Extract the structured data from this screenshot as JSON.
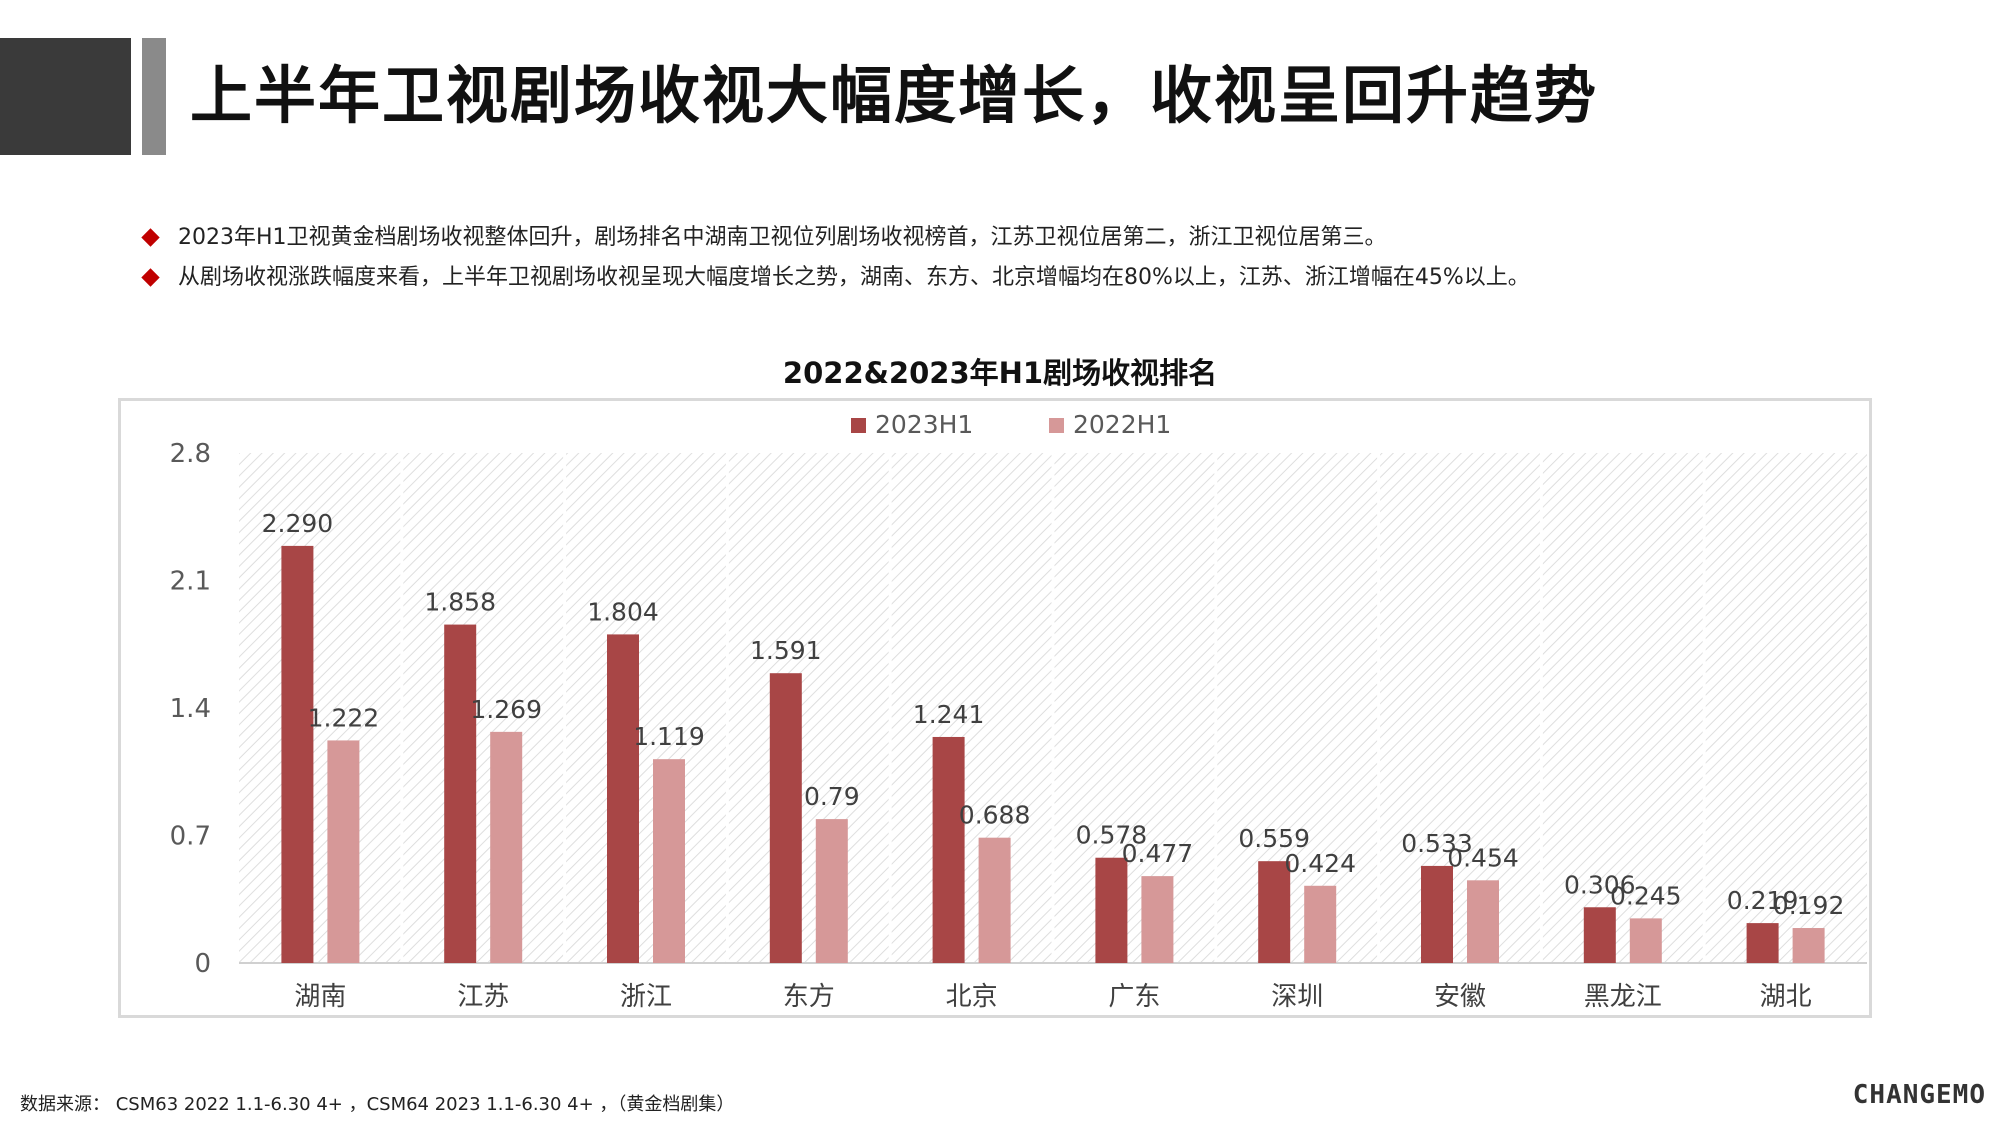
{
  "header": {
    "title": "上半年卫视剧场收视大幅度增长，收视呈回升趋势"
  },
  "bullets": [
    "2023年H1卫视黄金档剧场收视整体回升，剧场排名中湖南卫视位列剧场收视榜首，江苏卫视位居第二，浙江卫视位居第三。",
    "从剧场收视涨跌幅度来看，上半年卫视剧场收视呈现大幅度增长之势，湖南、东方、北京增幅均在80%以上，江苏、浙江增幅在45%以上。"
  ],
  "chart_data": {
    "type": "bar",
    "title": "2022&2023年H1剧场收视排名",
    "categories": [
      "湖南",
      "江苏",
      "浙江",
      "东方",
      "北京",
      "广东",
      "深圳",
      "安徽",
      "黑龙江",
      "湖北"
    ],
    "series": [
      {
        "name": "2023H1",
        "color": "#a84646",
        "values": [
          2.29,
          1.858,
          1.804,
          1.591,
          1.241,
          0.578,
          0.559,
          0.533,
          0.306,
          0.219
        ],
        "labels": [
          "2.290",
          "1.858",
          "1.804",
          "1.591",
          "1.241",
          "0.578",
          "0.559",
          "0.533",
          "0.306",
          "0.219"
        ]
      },
      {
        "name": "2022H1",
        "color": "#d69898",
        "values": [
          1.222,
          1.269,
          1.119,
          0.79,
          0.688,
          0.477,
          0.424,
          0.454,
          0.245,
          0.192
        ],
        "labels": [
          "1.222",
          "1.269",
          "1.119",
          "0.79",
          "0.688",
          "0.477",
          "0.424",
          "0.454",
          "0.245",
          "0.192"
        ]
      }
    ],
    "ylim": [
      0,
      2.8
    ],
    "yticks": [
      "0",
      "0.7",
      "1.4",
      "2.1",
      "2.8"
    ],
    "legend": "top-center",
    "grid": false
  },
  "footer": {
    "source": "数据来源： CSM63 2022 1.1-6.30 4+ ，CSM64 2023 1.1-6.30 4+ ，（黄金档剧集）",
    "logo": "CHANGEMO"
  }
}
